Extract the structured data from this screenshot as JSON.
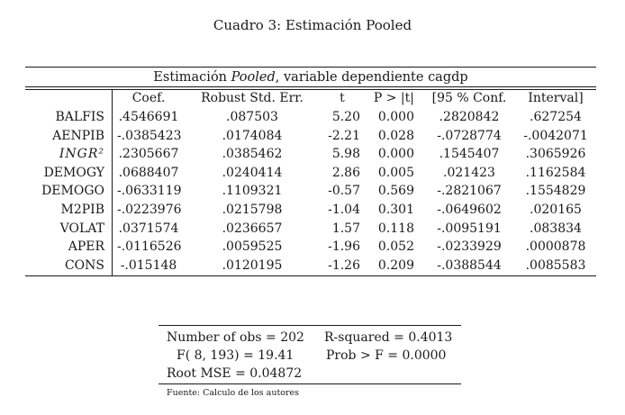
{
  "caption": "Cuadro 3: Estimación Pooled",
  "table": {
    "title_pre": "Estimación ",
    "title_italic": "Pooled",
    "title_post": ", variable dependiente cagdp",
    "headers": [
      "Coef.",
      "Robust Std. Err.",
      "t",
      "P > |t|",
      "[95 % Conf.",
      "Interval]"
    ],
    "rows": [
      {
        "var": "BALFIS",
        "coef": ".4546691",
        "se": ".087503",
        "t": "5.20",
        "p": "0.000",
        "lo": ".2820842",
        "hi": ".627254"
      },
      {
        "var": "AENPIB",
        "coef": "-.0385423",
        "se": ".0174084",
        "t": "-2.21",
        "p": "0.028",
        "lo": "-.0728774",
        "hi": "-.0042071"
      },
      {
        "var": "INGR²",
        "coef": ".2305667",
        "se": ".0385462",
        "t": "5.98",
        "p": "0.000",
        "lo": ".1545407",
        "hi": ".3065926"
      },
      {
        "var": "DEMOGY",
        "coef": ".0688407",
        "se": ".0240414",
        "t": "2.86",
        "p": "0.005",
        "lo": ".021423",
        "hi": ".1162584"
      },
      {
        "var": "DEMOGO",
        "coef": "-.0633119",
        "se": ".1109321",
        "t": "-0.57",
        "p": "0.569",
        "lo": "-.2821067",
        "hi": ".1554829"
      },
      {
        "var": "M2PIB",
        "coef": "-.0223976",
        "se": ".0215798",
        "t": "-1.04",
        "p": "0.301",
        "lo": "-.0649602",
        "hi": ".020165"
      },
      {
        "var": "VOLAT",
        "coef": ".0371574",
        "se": ".0236657",
        "t": "1.57",
        "p": "0.118",
        "lo": "-.0095191",
        "hi": ".083834"
      },
      {
        "var": "APER",
        "coef": "-.0116526",
        "se": ".0059525",
        "t": "-1.96",
        "p": "0.052",
        "lo": "-.0233929",
        "hi": ".0000878"
      },
      {
        "var": "CONS",
        "coef": "-.015148",
        "se": ".0120195",
        "t": "-1.26",
        "p": "0.209",
        "lo": "-.0388544",
        "hi": ".0085583"
      }
    ]
  },
  "stats": {
    "nobs": "Number of obs = 202",
    "r2": "R-squared = 0.4013",
    "f": "F( 8, 193) = 19.41",
    "probf": "Prob > F = 0.0000",
    "rmse": "Root MSE = 0.04872"
  },
  "source": "Fuente: Calculo de los autores"
}
